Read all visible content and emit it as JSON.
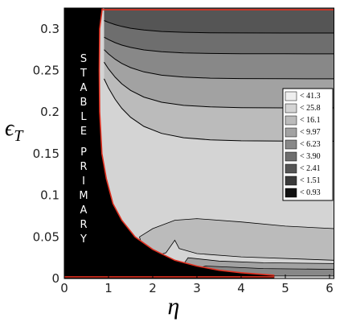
{
  "chart_data": {
    "type": "contour",
    "xlabel": "η",
    "ylabel": "ϵ",
    "ylabel_sub": "T",
    "region_label": [
      "STABLE",
      "PRIMARY"
    ],
    "xlim": [
      0,
      6.1
    ],
    "ylim": [
      0,
      0.325
    ],
    "xticks": [
      0,
      1,
      2,
      3,
      4,
      5,
      6
    ],
    "yticks": [
      0,
      0.05,
      0.1,
      0.15,
      0.2,
      0.25,
      0.3
    ],
    "legend": [
      {
        "label": "< 41.3",
        "color": "#eeeeee"
      },
      {
        "label": "< 25.8",
        "color": "#d4d4d4"
      },
      {
        "label": "< 16.1",
        "color": "#bbbbbb"
      },
      {
        "label": "< 9.97",
        "color": "#a2a2a2"
      },
      {
        "label": "< 6.23",
        "color": "#888888"
      },
      {
        "label": "< 3.90",
        "color": "#6e6e6e"
      },
      {
        "label": "< 2.41",
        "color": "#555555"
      },
      {
        "label": "< 1.51",
        "color": "#3a3a3a"
      },
      {
        "label": "< 0.93",
        "color": "#111111"
      }
    ]
  }
}
